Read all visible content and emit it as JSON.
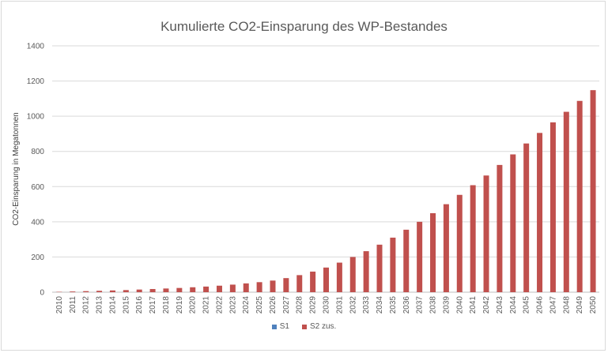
{
  "chart_data": {
    "type": "bar",
    "title": "Kumulierte CO2-Einsparung des WP-Bestandes",
    "xlabel": "",
    "ylabel": "CO2-Einsparung in Megatonnen",
    "ylim": [
      0,
      1400
    ],
    "yticks": [
      0,
      200,
      400,
      600,
      800,
      1000,
      1200,
      1400
    ],
    "grid": true,
    "legend_position": "bottom",
    "categories": [
      "2010",
      "2011",
      "2012",
      "2013",
      "2014",
      "2015",
      "2016",
      "2017",
      "2018",
      "2019",
      "2020",
      "2021",
      "2022",
      "2023",
      "2024",
      "2025",
      "2026",
      "2027",
      "2028",
      "2029",
      "2030",
      "2031",
      "2032",
      "2033",
      "2034",
      "2035",
      "2036",
      "2037",
      "2038",
      "2039",
      "2040",
      "2041",
      "2042",
      "2043",
      "2044",
      "2045",
      "2046",
      "2047",
      "2048",
      "2049",
      "2050"
    ],
    "series": [
      {
        "name": "S1",
        "color": "#4f81bd",
        "values": [
          1,
          1,
          1,
          1,
          1,
          1,
          1,
          1,
          1,
          1,
          1,
          1,
          1,
          1,
          1,
          1,
          1,
          1,
          1,
          1,
          1,
          1,
          1,
          1,
          1,
          1,
          1,
          1,
          1,
          1,
          1,
          1,
          1,
          1,
          1,
          1,
          1,
          1,
          1,
          1,
          1
        ]
      },
      {
        "name": "S2 zus.",
        "color": "#c0504d",
        "values": [
          2,
          4,
          6,
          8,
          10,
          12,
          15,
          18,
          21,
          24,
          28,
          32,
          37,
          43,
          50,
          57,
          66,
          80,
          97,
          117,
          140,
          168,
          200,
          233,
          270,
          310,
          355,
          400,
          449,
          500,
          553,
          608,
          663,
          723,
          783,
          845,
          905,
          965,
          1025,
          1087,
          1148
        ]
      }
    ]
  }
}
